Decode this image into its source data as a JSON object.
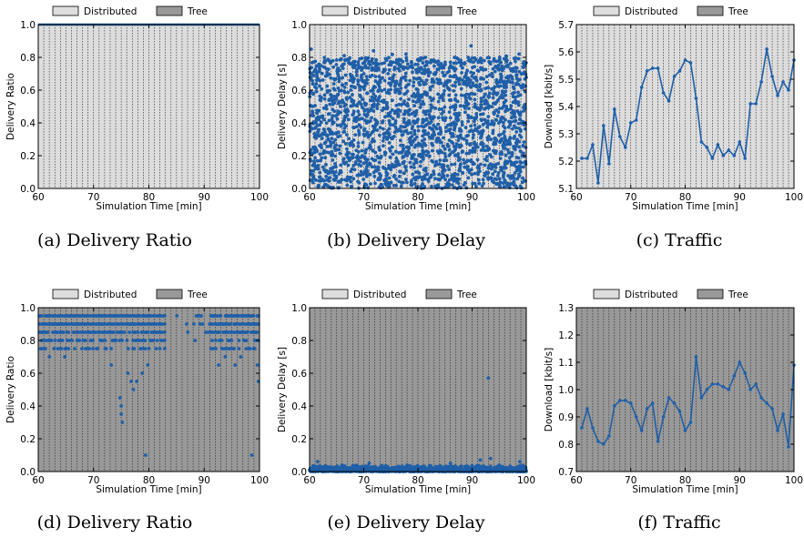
{
  "legend": {
    "distributed": "Distributed",
    "tree": "Tree"
  },
  "colors": {
    "distributed_bg": "#dddddd",
    "tree_bg": "#999999",
    "series": "#1f5fa8"
  },
  "chart_data": [
    {
      "id": "a",
      "type": "line",
      "caption": "(a) Delivery Ratio",
      "background": "distributed",
      "xlabel": "Simulation Time [min]",
      "ylabel": "Delivery Ratio",
      "xlim": [
        60,
        100
      ],
      "ylim": [
        0,
        1
      ],
      "xticks": [
        "60",
        "70",
        "80",
        "90",
        "100"
      ],
      "yticks": [
        "0.0",
        "0.2",
        "0.4",
        "0.6",
        "0.8",
        "1.0"
      ],
      "series": [
        {
          "x": [
            60,
            100
          ],
          "y": [
            1.0,
            1.0
          ]
        }
      ]
    },
    {
      "id": "b",
      "type": "scatter",
      "caption": "(b) Delivery Delay",
      "background": "distributed",
      "xlabel": "Simulation Time [min]",
      "ylabel": "Delivery Delay [s]",
      "xlim": [
        60,
        100
      ],
      "ylim": [
        0,
        1
      ],
      "xticks": [
        "60",
        "70",
        "80",
        "90",
        "100"
      ],
      "yticks": [
        "0.0",
        "0.2",
        "0.4",
        "0.6",
        "0.8",
        "1.0"
      ],
      "points": [
        [
          60.3,
          0.85
        ],
        [
          61,
          0.62
        ],
        [
          61.6,
          0.12
        ],
        [
          62.2,
          0.44
        ],
        [
          62.8,
          0.78
        ],
        [
          63.4,
          0.3
        ],
        [
          64,
          0.55
        ],
        [
          64.6,
          0.05
        ],
        [
          65.2,
          0.7
        ],
        [
          65.8,
          0.38
        ],
        [
          66.4,
          0.81
        ],
        [
          67,
          0.22
        ],
        [
          67.6,
          0.6
        ],
        [
          68.2,
          0.47
        ],
        [
          68.8,
          0.08
        ],
        [
          69.4,
          0.74
        ],
        [
          70,
          0.33
        ],
        [
          70.6,
          0.58
        ],
        [
          71.2,
          0.15
        ],
        [
          71.8,
          0.84
        ],
        [
          72.4,
          0.41
        ],
        [
          73,
          0.66
        ],
        [
          73.6,
          0.26
        ],
        [
          74.2,
          0.52
        ],
        [
          74.8,
          0.03
        ],
        [
          75.4,
          0.77
        ],
        [
          76,
          0.36
        ],
        [
          76.6,
          0.63
        ],
        [
          77.2,
          0.19
        ],
        [
          77.8,
          0.82
        ],
        [
          78.4,
          0.45
        ],
        [
          79,
          0.71
        ],
        [
          79.6,
          0.1
        ],
        [
          80.2,
          0.57
        ],
        [
          80.8,
          0.29
        ],
        [
          81.4,
          0.8
        ],
        [
          82,
          0.4
        ],
        [
          82.6,
          0.65
        ],
        [
          83.2,
          0.14
        ],
        [
          83.8,
          0.53
        ],
        [
          84.4,
          0.75
        ],
        [
          85,
          0.24
        ],
        [
          85.6,
          0.61
        ],
        [
          86.2,
          0.06
        ],
        [
          86.8,
          0.48
        ],
        [
          87.4,
          0.79
        ],
        [
          88,
          0.35
        ],
        [
          88.6,
          0.68
        ],
        [
          89.2,
          0.17
        ],
        [
          89.8,
          0.87
        ],
        [
          90.4,
          0.43
        ],
        [
          91,
          0.72
        ],
        [
          91.6,
          0.27
        ],
        [
          92.2,
          0.56
        ],
        [
          92.8,
          0.09
        ],
        [
          93.4,
          0.76
        ],
        [
          94,
          0.39
        ],
        [
          94.6,
          0.64
        ],
        [
          95.2,
          0.21
        ],
        [
          95.8,
          0.5
        ],
        [
          96.4,
          0.78
        ],
        [
          97,
          0.31
        ],
        [
          97.6,
          0.62
        ],
        [
          98.2,
          0.13
        ],
        [
          98.8,
          0.46
        ],
        [
          99.4,
          0.74
        ],
        [
          99.9,
          0.25
        ]
      ],
      "note_dense": "dense uniform scatter of delays between 0.0 and 0.8 s over the whole time range"
    },
    {
      "id": "c",
      "type": "line",
      "caption": "(c) Traffic",
      "background": "distributed",
      "xlabel": "Simulation Time [min]",
      "ylabel": "Download [kbit/s]",
      "xlim": [
        60,
        100
      ],
      "ylim": [
        5.1,
        5.7
      ],
      "xticks": [
        "60",
        "70",
        "80",
        "90",
        "100"
      ],
      "yticks": [
        "5.1",
        "5.2",
        "5.3",
        "5.4",
        "5.5",
        "5.6",
        "5.7"
      ],
      "series": [
        {
          "x": [
            61,
            62,
            63,
            64,
            65,
            66,
            67,
            68,
            69,
            70,
            71,
            72,
            73,
            74,
            75,
            76,
            77,
            78,
            79,
            80,
            81,
            82,
            83,
            84,
            85,
            86,
            87,
            88,
            89,
            90,
            91,
            92,
            93,
            94,
            95,
            96,
            97,
            98,
            99,
            100
          ],
          "y": [
            5.21,
            5.21,
            5.26,
            5.12,
            5.33,
            5.19,
            5.39,
            5.29,
            5.25,
            5.34,
            5.35,
            5.47,
            5.53,
            5.54,
            5.54,
            5.45,
            5.42,
            5.51,
            5.53,
            5.57,
            5.56,
            5.43,
            5.27,
            5.25,
            5.21,
            5.26,
            5.22,
            5.24,
            5.22,
            5.27,
            5.21,
            5.41,
            5.41,
            5.49,
            5.61,
            5.51,
            5.44,
            5.49,
            5.46,
            5.57
          ]
        }
      ]
    },
    {
      "id": "d",
      "type": "scatter",
      "caption": "(d) Delivery Ratio",
      "background": "tree",
      "xlabel": "Simulation Time [min]",
      "ylabel": "Delivery Ratio",
      "xlim": [
        60,
        100
      ],
      "ylim": [
        0,
        1
      ],
      "xticks": [
        "60",
        "70",
        "80",
        "90",
        "100"
      ],
      "yticks": [
        "0.0",
        "0.2",
        "0.4",
        "0.6",
        "0.8",
        "1.0"
      ],
      "bands": [
        0.95,
        0.9,
        0.85,
        0.8,
        0.75
      ],
      "points": [
        [
          74.8,
          0.45
        ],
        [
          75,
          0.4
        ],
        [
          75,
          0.35
        ],
        [
          75.2,
          0.3
        ],
        [
          76.2,
          0.6
        ],
        [
          76.8,
          0.55
        ],
        [
          77.2,
          0.5
        ],
        [
          77.8,
          0.55
        ],
        [
          78.8,
          0.6
        ],
        [
          79.4,
          0.1
        ],
        [
          79.8,
          0.65
        ],
        [
          73.2,
          0.65
        ],
        [
          62,
          0.7
        ],
        [
          64.8,
          0.7
        ],
        [
          69,
          0.75
        ],
        [
          92.6,
          0.65
        ],
        [
          93.8,
          0.7
        ],
        [
          95.6,
          0.65
        ],
        [
          96.6,
          0.7
        ],
        [
          98.6,
          0.1
        ],
        [
          99.6,
          0.65
        ],
        [
          99.8,
          0.55
        ]
      ]
    },
    {
      "id": "e",
      "type": "scatter",
      "caption": "(e) Delivery Delay",
      "background": "tree",
      "xlabel": "Simulation Time [min]",
      "ylabel": "Delivery Delay [s]",
      "xlim": [
        60,
        100
      ],
      "ylim": [
        0,
        1
      ],
      "xticks": [
        "60",
        "70",
        "80",
        "90",
        "100"
      ],
      "yticks": [
        "0.0",
        "0.2",
        "0.4",
        "0.6",
        "0.8",
        "1.0"
      ],
      "points": [
        [
          93,
          0.57
        ],
        [
          61.5,
          0.06
        ],
        [
          66,
          0.04
        ],
        [
          71,
          0.05
        ],
        [
          78,
          0.04
        ],
        [
          86,
          0.05
        ],
        [
          91.5,
          0.07
        ],
        [
          93.4,
          0.08
        ],
        [
          95,
          0.04
        ],
        [
          98.8,
          0.06
        ]
      ],
      "note_dense": "dense band of delays near 0.0-0.03 s over the whole time range"
    },
    {
      "id": "f",
      "type": "line",
      "caption": "(f) Traffic",
      "background": "tree",
      "xlabel": "Simulation Time [min]",
      "ylabel": "Download [kbit/s]",
      "xlim": [
        60,
        100
      ],
      "ylim": [
        0.7,
        1.3
      ],
      "xticks": [
        "60",
        "70",
        "80",
        "90",
        "100"
      ],
      "yticks": [
        "0.7",
        "0.8",
        "0.9",
        "1.0",
        "1.1",
        "1.2",
        "1.3"
      ],
      "series": [
        {
          "x": [
            61,
            62,
            63,
            64,
            65,
            66,
            67,
            68,
            69,
            70,
            71,
            72,
            73,
            74,
            75,
            76,
            77,
            78,
            79,
            80,
            81,
            82,
            83,
            84,
            85,
            86,
            87,
            88,
            89,
            90,
            91,
            92,
            93,
            94,
            95,
            96,
            97,
            98,
            99,
            100
          ],
          "y": [
            0.86,
            0.93,
            0.86,
            0.81,
            0.8,
            0.83,
            0.94,
            0.96,
            0.96,
            0.95,
            0.9,
            0.85,
            0.93,
            0.95,
            0.81,
            0.9,
            0.97,
            0.95,
            0.92,
            0.85,
            0.88,
            1.12,
            0.97,
            1.0,
            1.02,
            1.02,
            1.01,
            1.0,
            1.05,
            1.1,
            1.06,
            1.0,
            1.02,
            0.97,
            0.95,
            0.93,
            0.85,
            0.91,
            0.79,
            1.09
          ]
        }
      ]
    }
  ]
}
